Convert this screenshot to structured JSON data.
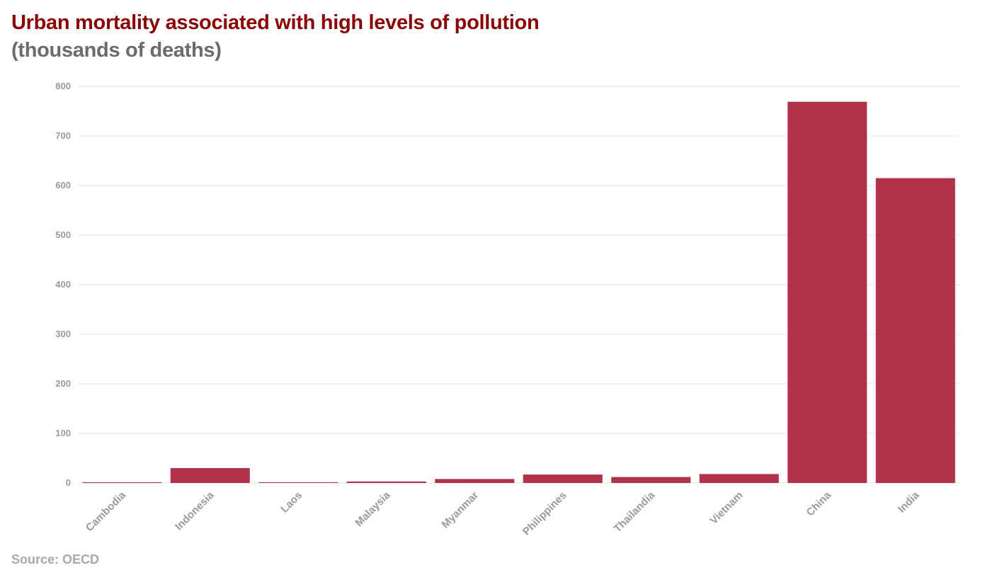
{
  "header": {
    "title": "Urban mortality associated with high levels of pollution",
    "subtitle": "(thousands of deaths)"
  },
  "footer": {
    "source": "Source: OECD"
  },
  "colors": {
    "bar": "#b0324b",
    "title": "#8b0000",
    "subtitle": "#6b6b6b",
    "grid": "#e6e6e6",
    "axis_text": "#9a9a9a"
  },
  "chart_data": {
    "type": "bar",
    "title": "Urban mortality associated with high levels of pollution",
    "subtitle": "(thousands of deaths)",
    "xlabel": "",
    "ylabel": "",
    "categories": [
      "Cambodia",
      "Indonesia",
      "Laos",
      "Malaysia",
      "Myanmar",
      "Philippines",
      "Thailandia",
      "Vietnam",
      "China",
      "India"
    ],
    "values": [
      1.5,
      30,
      0.5,
      3,
      8,
      17,
      12,
      18,
      769,
      615
    ],
    "ylim": [
      0,
      800
    ],
    "yticks": [
      0,
      100,
      200,
      300,
      400,
      500,
      600,
      700,
      800
    ],
    "grid": true,
    "legend": "none"
  }
}
